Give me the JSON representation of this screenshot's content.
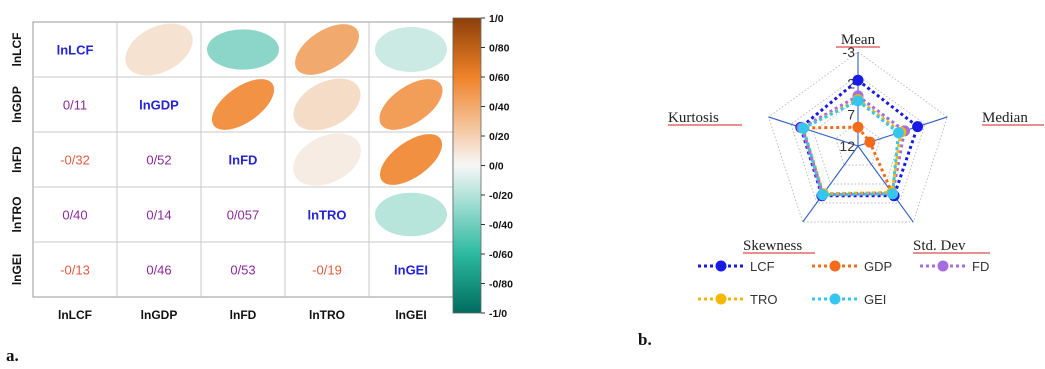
{
  "panel_labels": {
    "a": "a.",
    "b": "b."
  },
  "colors": {
    "low": "#006b5e",
    "mid": "#f7f7f7",
    "high": "#8c3f0a",
    "diag_text": "#2323d8",
    "lcf": "#1a1ae6",
    "gdp": "#f26c1c",
    "fd": "#a56de0",
    "tro": "#f5b800",
    "gei": "#35c6ee",
    "radar_axis": "#2f5fbf",
    "axis_underline": "#d22222"
  },
  "chart_data": [
    {
      "type": "heatmap",
      "variables": [
        "lnLCF",
        "lnGDP",
        "lnFD",
        "lnTRO",
        "lnGEI"
      ],
      "diagonal_labels": [
        "lnLCF",
        "lnGDP",
        "lnFD",
        "lnTRO",
        "lnGEI"
      ],
      "x_tick_labels": [
        "lnLCF",
        "lnGDP",
        "lnFD",
        "lnTRO",
        "lnGEI"
      ],
      "y_tick_labels": [
        "lnLCF",
        "lnGDP",
        "lnFD",
        "lnTRO",
        "lnGEI"
      ],
      "lower_triangle_labels": [
        [
          "",
          "",
          "",
          "",
          ""
        ],
        [
          "0/11",
          "",
          "",
          "",
          ""
        ],
        [
          "-0/32",
          "0/52",
          "",
          "",
          ""
        ],
        [
          "0/40",
          "0/14",
          "0/057",
          "",
          ""
        ],
        [
          "-0/13",
          "0/46",
          "0/53",
          "-0/19",
          ""
        ]
      ],
      "matrix": [
        [
          1.0,
          0.11,
          -0.32,
          0.4,
          -0.13
        ],
        [
          0.11,
          1.0,
          0.52,
          0.14,
          0.46
        ],
        [
          -0.32,
          0.52,
          1.0,
          0.057,
          0.53
        ],
        [
          0.4,
          0.14,
          0.057,
          1.0,
          -0.19
        ],
        [
          -0.13,
          0.46,
          0.53,
          -0.19,
          1.0
        ]
      ],
      "upper_triangle_display": "ellipses",
      "colorbar": {
        "range": [
          -1.0,
          1.0
        ],
        "tick_values": [
          1.0,
          0.8,
          0.6,
          0.4,
          0.2,
          0.0,
          -0.2,
          -0.4,
          -0.6,
          -0.8,
          -1.0
        ],
        "tick_labels": [
          "1/0",
          "0/80",
          "0/60",
          "0/40",
          "0/20",
          "0/0",
          "-0/20",
          "-0/40",
          "-0/60",
          "-0/80",
          "-1/0"
        ]
      }
    },
    {
      "type": "radar",
      "axes": [
        "Mean",
        "Median",
        "Std. Dev",
        "Skewness",
        "Kurtosis"
      ],
      "radial_range": [
        -3,
        12
      ],
      "radial_tick_labels": [
        "-3",
        "2",
        "7",
        "12"
      ],
      "grid": true,
      "legend_placement": "bottom",
      "series": [
        {
          "name": "LCF",
          "values": [
            1.5,
            2.0,
            2.2,
            2.2,
            2.4
          ]
        },
        {
          "name": "GDP",
          "values": [
            9.0,
            10.0,
            2.8,
            2.5,
            2.7
          ]
        },
        {
          "name": "FD",
          "values": [
            4.0,
            4.2,
            2.6,
            2.4,
            2.6
          ]
        },
        {
          "name": "TRO",
          "values": [
            4.6,
            4.8,
            2.8,
            2.6,
            2.8
          ]
        },
        {
          "name": "GEI",
          "values": [
            4.8,
            5.2,
            2.6,
            2.4,
            2.8
          ]
        }
      ]
    }
  ]
}
